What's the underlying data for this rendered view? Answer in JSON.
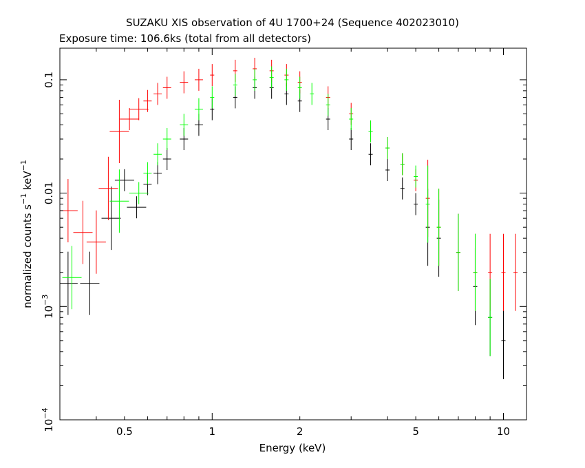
{
  "chart_data": {
    "type": "scatter",
    "title": "SUZAKU XIS observation of 4U 1700+24 (Sequence 402023010)",
    "subtitle": "Exposure time: 106.6ks (total from all detectors)",
    "xlabel": "Energy (keV)",
    "ylabel": {
      "base": "normalized counts s",
      "exp1": "−1",
      "mid": " keV",
      "exp2": "−1"
    },
    "x_scale": "log",
    "y_scale": "log",
    "xlim": [
      0.3,
      12
    ],
    "ylim": [
      0.0001,
      0.19
    ],
    "x_ticks": [
      {
        "value": 0.5,
        "label": "0.5"
      },
      {
        "value": 1,
        "label": "1"
      },
      {
        "value": 2,
        "label": "2"
      },
      {
        "value": 5,
        "label": "5"
      },
      {
        "value": 10,
        "label": "10"
      }
    ],
    "y_ticks": [
      {
        "value": 0.0001,
        "mant": "10",
        "exp": "−4"
      },
      {
        "value": 0.001,
        "mant": "10",
        "exp": "−3"
      },
      {
        "value": 0.01,
        "label": "0.01"
      },
      {
        "value": 0.1,
        "label": "0.1"
      }
    ],
    "grid": false,
    "legend": "none",
    "colors": {
      "axes": "#000000",
      "s0": "#000000",
      "s1": "#ff0000",
      "s2": "#00ff00"
    },
    "series": [
      {
        "color": "#000000",
        "x": [
          0.32,
          0.38,
          0.45,
          0.5,
          0.55,
          0.6,
          0.65,
          0.7,
          0.8,
          0.9,
          1.0,
          1.2,
          1.4,
          1.6,
          1.8,
          2.0,
          2.5,
          3.0,
          3.5,
          4.0,
          4.5,
          5.0,
          5.5,
          6.0,
          7.0,
          8.0,
          9.0,
          10.0
        ],
        "y": [
          0.0016,
          0.0016,
          0.006,
          0.013,
          0.0075,
          0.012,
          0.015,
          0.02,
          0.03,
          0.04,
          0.055,
          0.07,
          0.085,
          0.085,
          0.075,
          0.065,
          0.045,
          0.03,
          0.022,
          0.016,
          0.011,
          0.008,
          0.005,
          0.004,
          0.003,
          0.0015,
          0.0008,
          0.0005
        ]
      },
      {
        "color": "#ff0000",
        "x": [
          0.32,
          0.36,
          0.4,
          0.44,
          0.48,
          0.52,
          0.56,
          0.6,
          0.65,
          0.7,
          0.8,
          0.9,
          1.0,
          1.2,
          1.4,
          1.6,
          1.8,
          2.0,
          2.5,
          3.0,
          3.5,
          4.0,
          4.5,
          5.0,
          5.5,
          6.0,
          7.0,
          8.0,
          9.0,
          10.0,
          11.0
        ],
        "y": [
          0.007,
          0.0045,
          0.0037,
          0.011,
          0.035,
          0.045,
          0.055,
          0.065,
          0.075,
          0.085,
          0.095,
          0.1,
          0.11,
          0.12,
          0.125,
          0.12,
          0.11,
          0.095,
          0.07,
          0.05,
          0.035,
          0.025,
          0.018,
          0.013,
          0.009,
          0.005,
          0.003,
          0.002,
          0.002,
          0.002,
          0.002
        ]
      },
      {
        "color": "#00ff00",
        "x": [
          0.33,
          0.48,
          0.56,
          0.6,
          0.65,
          0.7,
          0.8,
          0.9,
          1.0,
          1.2,
          1.4,
          1.6,
          1.8,
          2.0,
          2.2,
          2.5,
          3.0,
          3.5,
          4.0,
          4.5,
          5.0,
          5.5,
          6.0,
          7.0,
          8.0,
          9.0
        ],
        "y": [
          0.0018,
          0.0085,
          0.01,
          0.015,
          0.022,
          0.03,
          0.04,
          0.055,
          0.07,
          0.09,
          0.1,
          0.105,
          0.1,
          0.085,
          0.075,
          0.06,
          0.045,
          0.035,
          0.025,
          0.018,
          0.014,
          0.008,
          0.005,
          0.003,
          0.002,
          0.0008
        ]
      }
    ]
  }
}
